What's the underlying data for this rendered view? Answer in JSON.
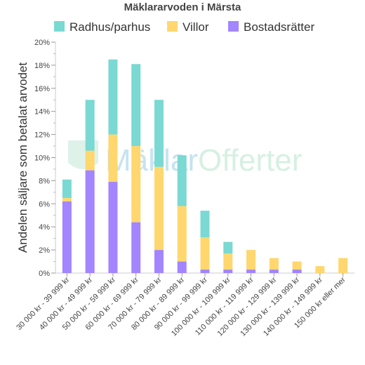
{
  "chart_data": {
    "type": "bar",
    "stacked": true,
    "title": "Mäklararvoden i Märsta",
    "ylabel": "Andelen säljare som betalat arvodet",
    "xlabel": "",
    "ylim": [
      0,
      20
    ],
    "yticks": [
      "0%",
      "2%",
      "4%",
      "6%",
      "8%",
      "10%",
      "12%",
      "14%",
      "16%",
      "18%",
      "20%"
    ],
    "grid": false,
    "legend_position": "top",
    "categories": [
      "30 000 kr - 39 999 kr",
      "40 000 kr - 49 999 kr",
      "50 000 kr - 59 999 kr",
      "60 000 kr - 69 999 kr",
      "70 000 kr - 79 999 kr",
      "80 000 kr - 89 999 kr",
      "90 000 kr - 99 999 kr",
      "100 000 kr - 109 999 kr",
      "110 000 kr - 119 999 kr",
      "120 000 kr - 129 999 kr",
      "130 000 kr - 139 999 kr",
      "140 000 kr - 149 999 kr",
      "150 000 kr eller mer"
    ],
    "series": [
      {
        "name": "Bostadsrätter",
        "color": "#a285ff",
        "values": [
          6.2,
          8.9,
          7.9,
          4.4,
          2.0,
          1.0,
          0.3,
          0.3,
          0.3,
          0.3,
          0.3,
          0.0,
          0.0
        ]
      },
      {
        "name": "Villor",
        "color": "#ffd76e",
        "values": [
          0.3,
          1.7,
          4.1,
          6.6,
          7.2,
          4.8,
          2.8,
          1.4,
          1.7,
          1.0,
          0.7,
          0.6,
          1.3
        ]
      },
      {
        "name": "Radhus/parhus",
        "color": "#7ad9d2",
        "values": [
          1.6,
          4.4,
          6.5,
          7.1,
          5.8,
          4.4,
          2.3,
          1.0,
          0.0,
          0.0,
          0.0,
          0.0,
          0.0
        ]
      }
    ],
    "legend_order": [
      "Radhus/parhus",
      "Villor",
      "Bostadsrätter"
    ]
  },
  "watermark": {
    "text_a": "Mäklar",
    "text_b": "Offerter",
    "color_a": "#c6e3f0",
    "color_b": "#d6f0e2"
  }
}
